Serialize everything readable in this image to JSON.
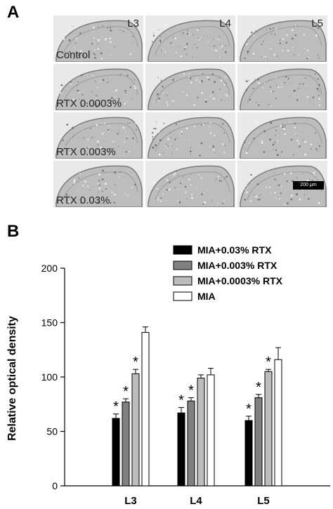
{
  "panels": {
    "a": "A",
    "b": "B"
  },
  "micrographs": {
    "columns": [
      "L3",
      "L4",
      "L5"
    ],
    "rows": [
      "Control",
      "RTX 0.0003%",
      "RTX 0.003%",
      "RTX 0.03%"
    ],
    "scale_bar": "200 μm"
  },
  "chart_data": {
    "type": "bar",
    "categories": [
      "L3",
      "L4",
      "L5"
    ],
    "ylabel": "Relative optical density",
    "ylim": [
      0,
      200
    ],
    "yticks": [
      0,
      50,
      100,
      150,
      200
    ],
    "grid": false,
    "legend_position": "top-right",
    "series": [
      {
        "name": "MIA+0.03% RTX",
        "values": [
          62,
          67,
          60
        ],
        "errors": [
          4,
          5,
          4
        ],
        "significant": [
          true,
          true,
          true
        ],
        "color": "#000000"
      },
      {
        "name": "MIA+0.003% RTX",
        "values": [
          77,
          78,
          81
        ],
        "errors": [
          3,
          3,
          3
        ],
        "significant": [
          true,
          true,
          true
        ],
        "color": "#808080"
      },
      {
        "name": "MIA+0.0003% RTX",
        "values": [
          103,
          99,
          105
        ],
        "errors": [
          4,
          3,
          2
        ],
        "significant": [
          true,
          false,
          true
        ],
        "color": "#bdbdbd"
      },
      {
        "name": "MIA",
        "values": [
          141,
          102,
          116
        ],
        "errors": [
          5,
          6,
          11
        ],
        "significant": [
          false,
          false,
          false
        ],
        "color": "#ffffff"
      }
    ],
    "significance_marker": "*"
  }
}
